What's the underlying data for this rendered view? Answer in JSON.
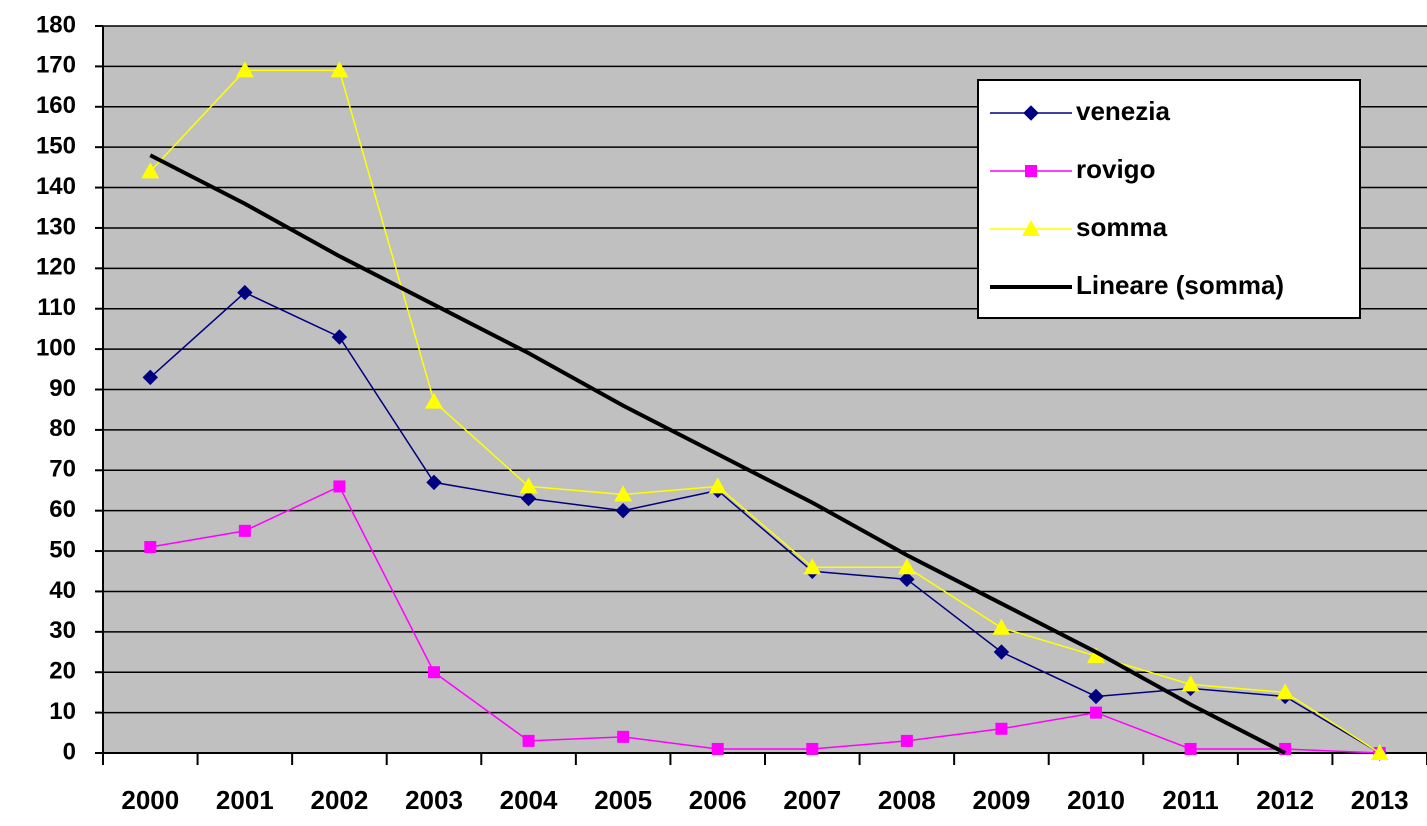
{
  "chart_data": {
    "type": "line",
    "categories": [
      "2000",
      "2001",
      "2002",
      "2003",
      "2004",
      "2005",
      "2006",
      "2007",
      "2008",
      "2009",
      "2010",
      "2011",
      "2012",
      "2013"
    ],
    "series": [
      {
        "name": "venezia",
        "color": "#000080",
        "marker": "diamond",
        "values": [
          93,
          114,
          103,
          67,
          63,
          60,
          65,
          45,
          43,
          25,
          14,
          16,
          14,
          0
        ]
      },
      {
        "name": "rovigo",
        "color": "#ff00ff",
        "marker": "square",
        "values": [
          51,
          55,
          66,
          20,
          3,
          4,
          1,
          1,
          3,
          6,
          10,
          1,
          1,
          0
        ]
      },
      {
        "name": "somma",
        "color": "#ffff00",
        "marker": "triangle",
        "values": [
          144,
          169,
          169,
          87,
          66,
          64,
          66,
          46,
          46,
          31,
          24,
          17,
          15,
          0
        ]
      },
      {
        "name": "Lineare (somma)",
        "color": "#000000",
        "marker": "none",
        "values": [
          148,
          136,
          123,
          111,
          99,
          86,
          74,
          62,
          49,
          37,
          25,
          12,
          0,
          null
        ]
      }
    ],
    "ylim": [
      0,
      180
    ],
    "yticks": [
      0,
      10,
      20,
      30,
      40,
      50,
      60,
      70,
      80,
      90,
      100,
      110,
      120,
      130,
      140,
      150,
      160,
      170,
      180
    ],
    "grid": true,
    "legend": "upper right",
    "background": "#c0c0c0"
  }
}
